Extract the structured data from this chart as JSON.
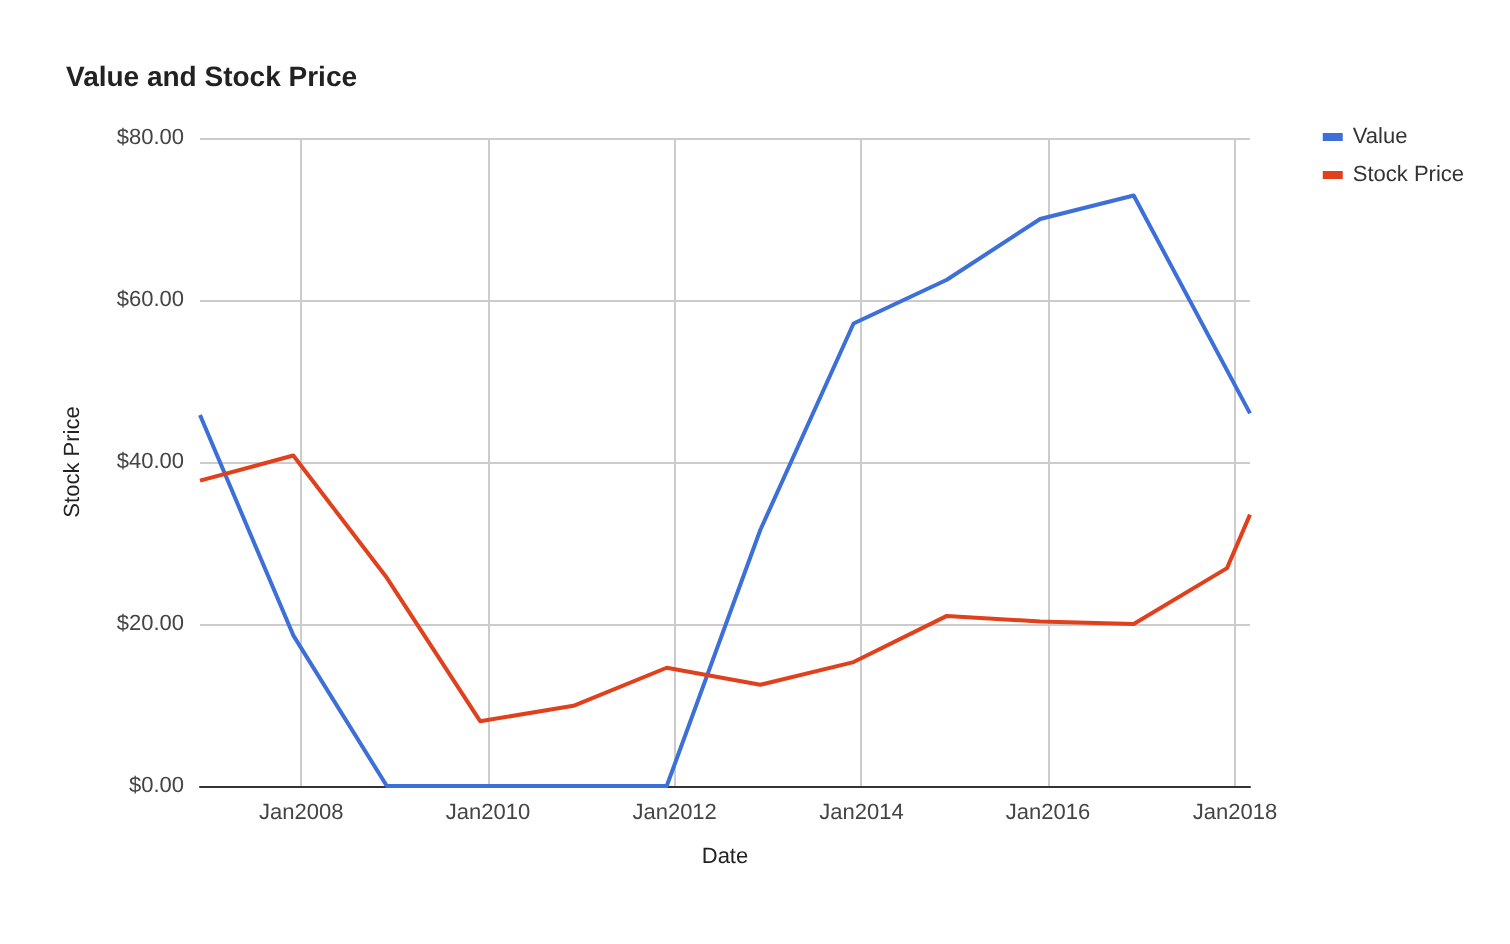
{
  "chart_data": {
    "type": "line",
    "title": "Value and Stock Price",
    "xlabel": "Date",
    "ylabel": "Stock Price",
    "x": [
      "2006-12",
      "2007-12",
      "2008-12",
      "2009-12",
      "2010-12",
      "2011-12",
      "2012-12",
      "2013-12",
      "2014-12",
      "2015-12",
      "2016-12",
      "2018-03"
    ],
    "series": [
      {
        "name": "Value",
        "color": "#3c6fd8",
        "values": [
          45.8,
          18.6,
          0,
          0,
          0,
          0,
          31.6,
          57.1,
          62.5,
          70,
          72.9,
          46
        ]
      },
      {
        "name": "Stock Price",
        "color": "#e0401c",
        "x": [
          "2006-12",
          "2007-12",
          "2008-12",
          "2009-12",
          "2010-12",
          "2011-12",
          "2012-12",
          "2013-12",
          "2014-12",
          "2015-12",
          "2016-12",
          "2017-12",
          "2018-03"
        ],
        "values": [
          37.7,
          40.8,
          25.7,
          8,
          9.9,
          14.6,
          12.5,
          15.3,
          21,
          20.3,
          20,
          26.9,
          33.5
        ]
      }
    ],
    "xlim": [
      "2006-12",
      "2018-03"
    ],
    "xticks": [
      {
        "value": "2008-01",
        "label": "Jan2008"
      },
      {
        "value": "2010-01",
        "label": "Jan2010"
      },
      {
        "value": "2012-01",
        "label": "Jan2012"
      },
      {
        "value": "2014-01",
        "label": "Jan2014"
      },
      {
        "value": "2016-01",
        "label": "Jan2016"
      },
      {
        "value": "2018-01",
        "label": "Jan2018"
      }
    ],
    "ylim": [
      0,
      80
    ],
    "yticks": [
      {
        "value": 0,
        "label": "$0.00"
      },
      {
        "value": 20,
        "label": "$20.00"
      },
      {
        "value": 40,
        "label": "$40.00"
      },
      {
        "value": 60,
        "label": "$60.00"
      },
      {
        "value": 80,
        "label": "$80.00"
      }
    ],
    "grid": true,
    "legend": "right",
    "marker": "none",
    "line_style": "solid"
  }
}
